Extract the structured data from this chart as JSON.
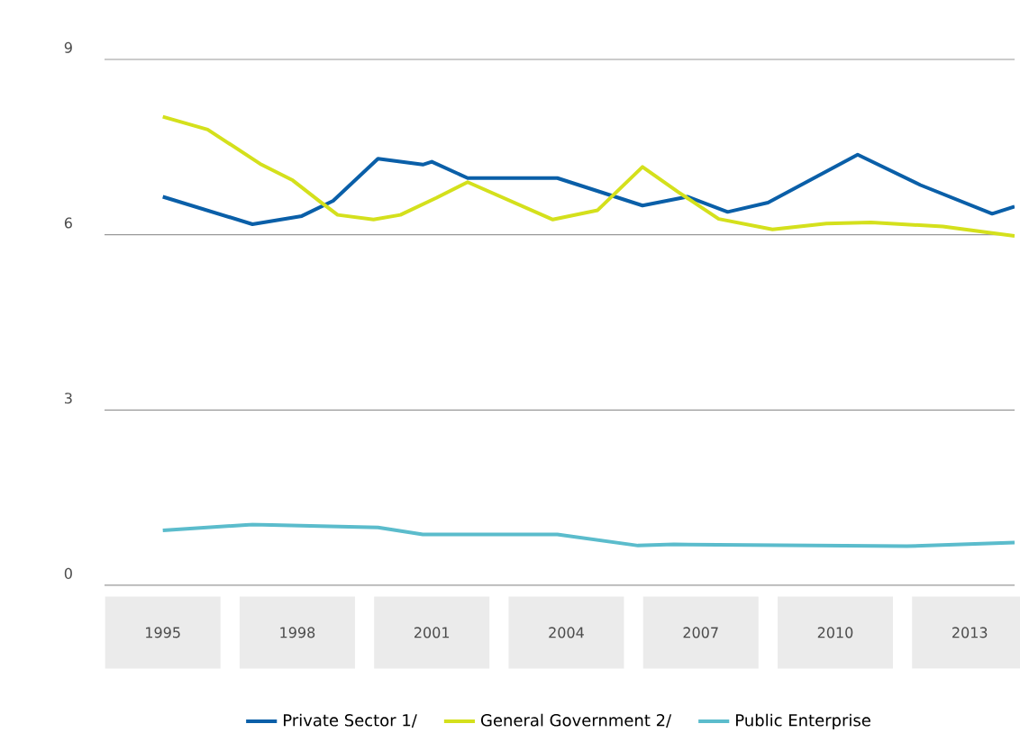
{
  "chart_data": {
    "type": "line",
    "xlim": [
      1993.7,
      2014.0
    ],
    "ylim": [
      0,
      9
    ],
    "xticks": [
      1995,
      1998,
      2001,
      2004,
      2007,
      2010,
      2013
    ],
    "yticks": [
      0,
      3,
      6,
      9
    ],
    "grid": "y",
    "legend": "bottom",
    "marker": "none",
    "line_style": "solid",
    "series": [
      {
        "name": "Private Sector 1/",
        "color": "#0a5fa8",
        "x": [
          1995.0,
          1997.0,
          1998.1,
          1998.8,
          1999.8,
          2000.8,
          2001.0,
          2001.8,
          2003.8,
          2005.7,
          2006.7,
          2007.6,
          2008.5,
          2010.5,
          2011.9,
          2013.5,
          2014.0
        ],
        "values": [
          6.65,
          6.18,
          6.32,
          6.58,
          7.3,
          7.2,
          7.25,
          6.97,
          6.97,
          6.5,
          6.65,
          6.39,
          6.55,
          7.37,
          6.85,
          6.36,
          6.48
        ]
      },
      {
        "name": "General Government 2/",
        "color": "#d4e01c",
        "x": [
          1995.0,
          1996.0,
          1997.2,
          1997.9,
          1998.5,
          1998.9,
          1999.7,
          2000.3,
          2001.1,
          2001.8,
          2003.7,
          2004.7,
          2005.7,
          2006.5,
          2007.4,
          2008.6,
          2009.8,
          2010.8,
          2012.4,
          2014.0
        ],
        "values": [
          8.02,
          7.8,
          7.2,
          6.93,
          6.57,
          6.34,
          6.26,
          6.34,
          6.63,
          6.9,
          6.26,
          6.42,
          7.16,
          6.73,
          6.27,
          6.09,
          6.19,
          6.21,
          6.14,
          5.98
        ]
      },
      {
        "name": "Public Enterprise",
        "color": "#5bbccc",
        "x": [
          1995.0,
          1997.0,
          1999.8,
          2000.8,
          2003.8,
          2005.6,
          2006.4,
          2011.6,
          2014.0
        ],
        "values": [
          0.94,
          1.04,
          0.99,
          0.87,
          0.87,
          0.68,
          0.7,
          0.67,
          0.73
        ]
      }
    ]
  }
}
